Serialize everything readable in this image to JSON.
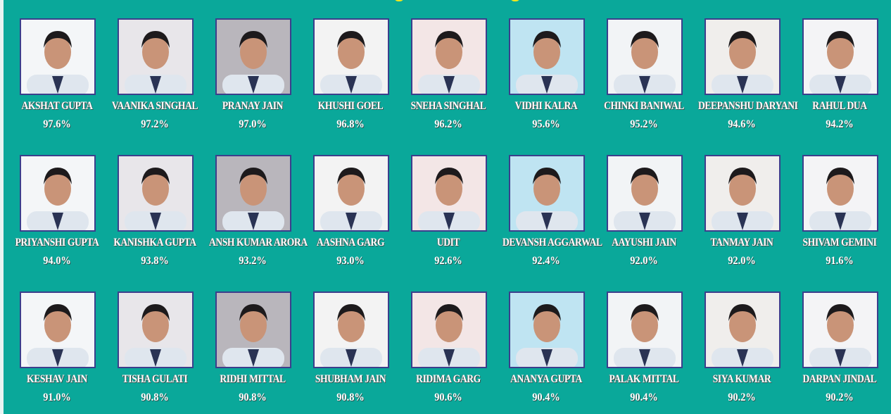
{
  "students": [
    {
      "name": "AKSHAT GUPTA",
      "score": "97.6%"
    },
    {
      "name": "VAANIKA SINGHAL",
      "score": "97.2%"
    },
    {
      "name": "PRANAY JAIN",
      "score": "97.0%"
    },
    {
      "name": "KHUSHI GOEL",
      "score": "96.8%"
    },
    {
      "name": "SNEHA SINGHAL",
      "score": "96.2%"
    },
    {
      "name": "VIDHI KALRA",
      "score": "95.6%"
    },
    {
      "name": "CHINKI BANIWAL",
      "score": "95.2%"
    },
    {
      "name": "DEEPANSHU DARYANI",
      "score": "94.6%"
    },
    {
      "name": "RAHUL DUA",
      "score": "94.2%"
    },
    {
      "name": "PRIYANSHI GUPTA",
      "score": "94.0%"
    },
    {
      "name": "KANISHKA GUPTA",
      "score": "93.8%"
    },
    {
      "name": "ANSH KUMAR ARORA",
      "score": "93.2%"
    },
    {
      "name": "AASHNA GARG",
      "score": "93.0%"
    },
    {
      "name": "UDIT",
      "score": "92.6%"
    },
    {
      "name": "DEVANSH AGGARWAL",
      "score": "92.4%"
    },
    {
      "name": "AAYUSHI JAIN",
      "score": "92.0%"
    },
    {
      "name": "TANMAY JAIN",
      "score": "92.0%"
    },
    {
      "name": "SHIVAM GEMINI",
      "score": "91.6%"
    },
    {
      "name": "KESHAV JAIN",
      "score": "91.0%"
    },
    {
      "name": "TISHA GULATI",
      "score": "90.8%"
    },
    {
      "name": "RIDHI MITTAL",
      "score": "90.8%"
    },
    {
      "name": "SHUBHAM JAIN",
      "score": "90.8%"
    },
    {
      "name": "RIDIMA GARG",
      "score": "90.6%"
    },
    {
      "name": "ANANYA GUPTA",
      "score": "90.4%"
    },
    {
      "name": "PALAK MITTAL",
      "score": "90.4%"
    },
    {
      "name": "SIYA KUMAR",
      "score": "90.2%"
    },
    {
      "name": "DARPAN JINDAL",
      "score": "90.2%"
    }
  ],
  "colors": {
    "background": "#0aa89a",
    "frame": "#3b3f8c",
    "title_accent": "#f3e61c"
  }
}
